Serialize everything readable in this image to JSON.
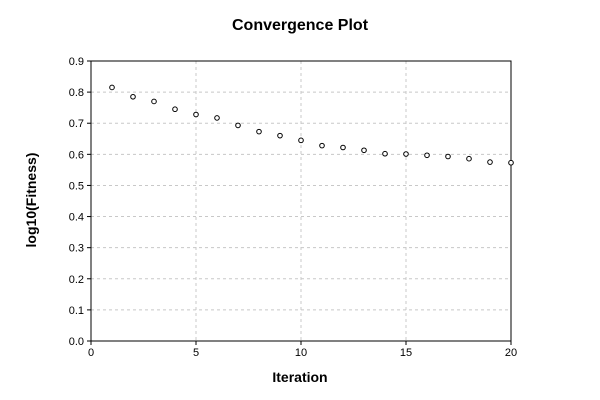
{
  "chart_data": {
    "type": "scatter",
    "title": "Convergence Plot",
    "xlabel": "Iteration",
    "ylabel": "log10(Fitness)",
    "xlim": [
      0,
      20
    ],
    "ylim": [
      0,
      0.9
    ],
    "xticks": [
      0,
      5,
      10,
      15,
      20
    ],
    "yticks": [
      0.0,
      0.1,
      0.2,
      0.3,
      0.4,
      0.5,
      0.6,
      0.7,
      0.8,
      0.9
    ],
    "ytick_labels": [
      "0.0",
      "0.1",
      "0.2",
      "0.3",
      "0.4",
      "0.5",
      "0.6",
      "0.7",
      "0.8",
      "0.9"
    ],
    "grid": true,
    "legend": false,
    "marker": "open-circle",
    "colors": {
      "marker": "#000000",
      "grid": "#c8c8c8",
      "axis": "#000000"
    },
    "series": [
      {
        "x": [
          1,
          2,
          3,
          4,
          5,
          6,
          7,
          8,
          9,
          10,
          11,
          12,
          13,
          14,
          15,
          16,
          17,
          18,
          19,
          20
        ],
        "y": [
          0.815,
          0.785,
          0.77,
          0.745,
          0.728,
          0.717,
          0.693,
          0.673,
          0.66,
          0.645,
          0.628,
          0.622,
          0.613,
          0.602,
          0.601,
          0.597,
          0.593,
          0.586,
          0.575,
          0.573
        ]
      }
    ]
  }
}
